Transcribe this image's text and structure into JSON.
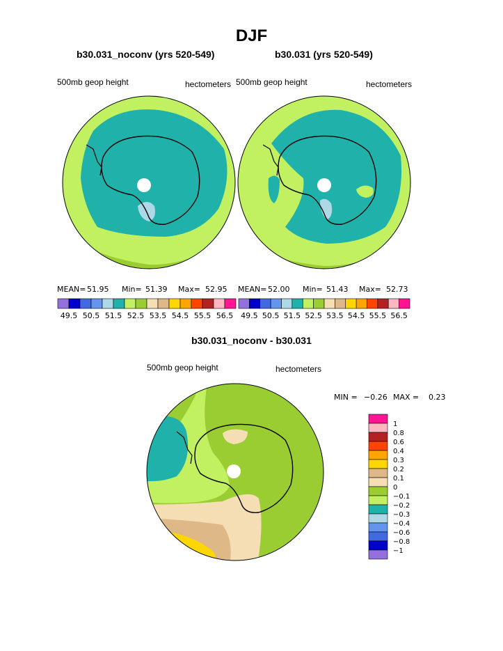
{
  "page": {
    "season": "DJF",
    "diff_title": "b30.031_noconv - b30.031"
  },
  "colors": {
    "land_outline": "#000000",
    "pole_hole": "#ffffff"
  },
  "chart_data": [
    {
      "type": "heatmap",
      "projection": "south-polar-stereographic",
      "title": "b30.031_noconv (yrs 520-549)",
      "left_label": "500mb geop height",
      "right_label": "hectometers",
      "stats": {
        "mean_label": "MEAN=",
        "mean": "51.95",
        "min_label": "Min=",
        "min": "51.39",
        "max_label": "Max=",
        "max": "52.95"
      },
      "levels": [
        49.5,
        50.5,
        51.5,
        52.5,
        53.5,
        54.5,
        55.5,
        56.5
      ],
      "level_labels": [
        "49.5",
        "50.5",
        "51.5",
        "52.5",
        "53.5",
        "54.5",
        "55.5",
        "56.5"
      ],
      "colorbar": [
        "#9370db",
        "#0000cd",
        "#4169e1",
        "#6495ed",
        "#add8e6",
        "#20b2aa",
        "#c1f160",
        "#9acd32",
        "#f5deb3",
        "#deb887",
        "#ffd700",
        "#ffa500",
        "#ff4500",
        "#b22222",
        "#ffb6c1",
        "#ff1493"
      ],
      "legend_position": "bottom"
    },
    {
      "type": "heatmap",
      "projection": "south-polar-stereographic",
      "title": "b30.031 (yrs 520-549)",
      "left_label": "500mb geop height",
      "right_label": "hectometers",
      "stats": {
        "mean_label": "MEAN=",
        "mean": "52.00",
        "min_label": "Min=",
        "min": "51.43",
        "max_label": "Max=",
        "max": "52.73"
      },
      "levels": [
        49.5,
        50.5,
        51.5,
        52.5,
        53.5,
        54.5,
        55.5,
        56.5
      ],
      "level_labels": [
        "49.5",
        "50.5",
        "51.5",
        "52.5",
        "53.5",
        "54.5",
        "55.5",
        "56.5"
      ],
      "colorbar": [
        "#9370db",
        "#0000cd",
        "#4169e1",
        "#6495ed",
        "#add8e6",
        "#20b2aa",
        "#c1f160",
        "#9acd32",
        "#f5deb3",
        "#deb887",
        "#ffd700",
        "#ffa500",
        "#ff4500",
        "#b22222",
        "#ffb6c1",
        "#ff1493"
      ],
      "legend_position": "bottom"
    },
    {
      "type": "heatmap",
      "projection": "south-polar-stereographic",
      "title": "b30.031_noconv - b30.031",
      "left_label": "500mb geop height",
      "right_label": "hectometers",
      "stats": {
        "min_label": "MIN =",
        "min": "−0.26",
        "max_label": "MAX =",
        "max": "0.23"
      },
      "levels": [
        1,
        0.8,
        0.6,
        0.4,
        0.3,
        0.2,
        0.1,
        0,
        -0.1,
        -0.2,
        -0.3,
        -0.4,
        -0.6,
        -0.8,
        -1
      ],
      "level_labels": [
        "1",
        "0.8",
        "0.6",
        "0.4",
        "0.3",
        "0.2",
        "0.1",
        "0",
        "−0.1",
        "−0.2",
        "−0.3",
        "−0.4",
        "−0.6",
        "−0.8",
        "−1"
      ],
      "colorbar": [
        "#ff1493",
        "#ffb6c1",
        "#b22222",
        "#ff4500",
        "#ffa500",
        "#ffd700",
        "#deb887",
        "#f5deb3",
        "#9acd32",
        "#c1f160",
        "#20b2aa",
        "#add8e6",
        "#6495ed",
        "#4169e1",
        "#0000cd",
        "#9370db"
      ],
      "legend_position": "right"
    }
  ]
}
